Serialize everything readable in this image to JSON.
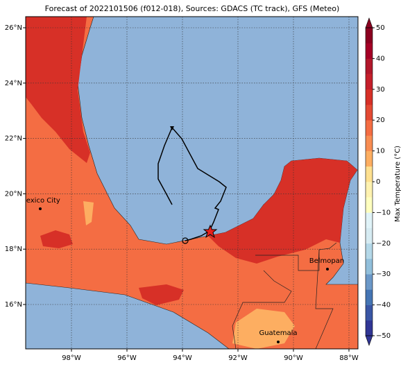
{
  "map": {
    "title": "Forecast of 2022101506 (f012-018), Sources: GDACS (TC track), GFS (Meteo)",
    "lon_ticks": [
      {
        "value": -98,
        "label": "98°W"
      },
      {
        "value": -96,
        "label": "96°W"
      },
      {
        "value": -94,
        "label": "94°W"
      },
      {
        "value": -92,
        "label": "92°W"
      },
      {
        "value": -90,
        "label": "90°W"
      },
      {
        "value": -88,
        "label": "88°W"
      }
    ],
    "lat_ticks": [
      {
        "value": 16,
        "label": "16°N"
      },
      {
        "value": 18,
        "label": "18°N"
      },
      {
        "value": 20,
        "label": "20°N"
      },
      {
        "value": 22,
        "label": "22°N"
      },
      {
        "value": 24,
        "label": "24°N"
      },
      {
        "value": 26,
        "label": "26°N"
      }
    ],
    "cities": [
      "Mexico City",
      "Belmopan",
      "Guatemala"
    ],
    "colorbar": {
      "label": "Max Temperature (°C)",
      "ticks": [
        50,
        40,
        30,
        20,
        10,
        0,
        {
          "value": -10,
          "label": "−10"
        },
        {
          "value": -20,
          "label": "−20"
        },
        {
          "value": -30,
          "label": "−30"
        },
        {
          "value": -40,
          "label": "−40"
        },
        {
          "value": -50,
          "label": "−50"
        }
      ],
      "colors": [
        "#313695",
        "#3a56a5",
        "#4575b4",
        "#6b98c8",
        "#91bfdb",
        "#b4d8e8",
        "#d6ebf2",
        "#e0f3f8",
        "#ffffbf",
        "#fff2b0",
        "#fee090",
        "#fdae61",
        "#f88d52",
        "#f46d43",
        "#e34a33",
        "#d73027",
        "#c51f2b",
        "#b2172b",
        "#a50026",
        "#8b0020"
      ]
    }
  }
}
